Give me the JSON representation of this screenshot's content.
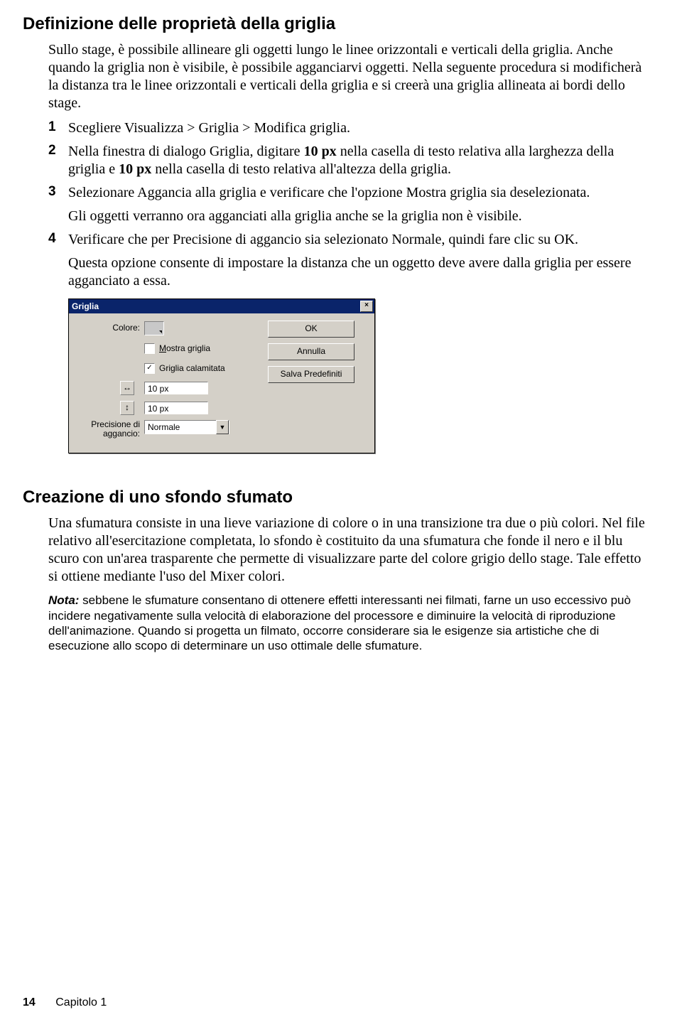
{
  "section1": {
    "heading": "Definizione delle proprietà della griglia",
    "intro": "Sullo stage, è possibile allineare gli oggetti lungo le linee orizzontali e verticali della griglia. Anche quando la griglia non è visibile, è possibile agganciarvi oggetti. Nella seguente procedura si modificherà la distanza tra le linee orizzontali e verticali della griglia e si creerà una griglia allineata ai bordi dello stage.",
    "step1_num": "1",
    "step1": "Scegliere Visualizza > Griglia > Modifica griglia.",
    "step2_num": "2",
    "step2_a": "Nella finestra di dialogo Griglia, digitare ",
    "step2_b": "10 px",
    "step2_c": " nella casella di testo relativa alla larghezza della griglia e ",
    "step2_d": "10 px",
    "step2_e": " nella casella di testo relativa all'altezza della griglia.",
    "step3_num": "3",
    "step3": "Selezionare Aggancia alla griglia e verificare che l'opzione Mostra griglia sia deselezionata.",
    "step3_sub": "Gli oggetti verranno ora agganciati alla griglia anche se la griglia non è visibile.",
    "step4_num": "4",
    "step4": "Verificare che per Precisione di aggancio sia selezionato Normale, quindi fare clic su OK.",
    "step4_sub": "Questa opzione consente di impostare la distanza che un oggetto deve avere dalla griglia per essere agganciato a essa."
  },
  "dialog": {
    "title": "Griglia",
    "close_glyph": "×",
    "color_label": "Colore:",
    "show_grid_label_pre": "M",
    "show_grid_label_post": "ostra griglia",
    "show_grid_checked": false,
    "snap_label": "Griglia calamitata",
    "snap_checked": true,
    "check_glyph": "✓",
    "width_value": "10 px",
    "height_value": "10 px",
    "harrow": "↔",
    "varrow": "↕",
    "precision_label_line1": "Precisione di",
    "precision_label_line2": "aggancio:",
    "precision_value": "Normale",
    "dd_glyph": "▼",
    "btn_ok": "OK",
    "btn_cancel": "Annulla",
    "btn_save": "Salva Predefiniti"
  },
  "section2": {
    "heading": "Creazione di uno sfondo sfumato",
    "body": "Una sfumatura consiste in una lieve variazione di colore o in una transizione tra due o più colori. Nel file relativo all'esercitazione completata, lo sfondo è costituito da una sfumatura che fonde il nero e il blu scuro con un'area trasparente che permette di visualizzare parte del colore grigio dello stage. Tale effetto si ottiene mediante l'uso del Mixer colori.",
    "note_label": "Nota:",
    "note_body": " sebbene le sfumature consentano di ottenere effetti interessanti nei filmati, farne un uso eccessivo può incidere negativamente sulla velocità di elaborazione del processore e diminuire la velocità di riproduzione dell'animazione. Quando si progetta un filmato, occorre considerare sia le esigenze sia artistiche che di esecuzione allo scopo di determinare un uso ottimale delle sfumature."
  },
  "footer": {
    "page_num": "14",
    "chapter": "Capitolo 1"
  }
}
